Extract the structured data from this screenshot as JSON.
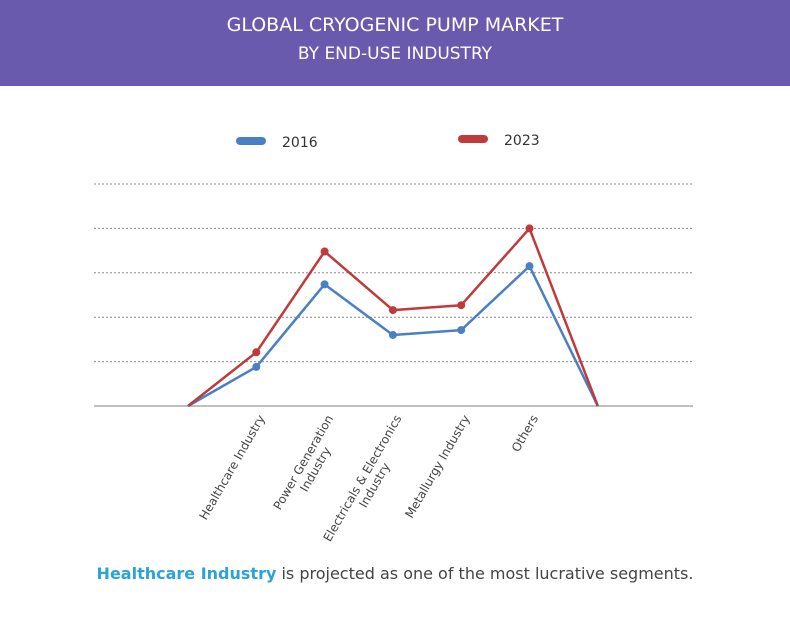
{
  "header": {
    "title_line1": "GLOBAL CRYOGENIC PUMP MARKET",
    "title_line2": "BY END-USE INDUSTRY"
  },
  "footer": {
    "highlight": "Healthcare Industry",
    "text": " is projected as one of the most lucrative segments."
  },
  "colors": {
    "header": "#6a5aad",
    "s2016": "#4a7fc4",
    "s2023": "#c0393b",
    "highlight": "#2ba3d8"
  },
  "chart_data": {
    "type": "line",
    "title": "Global Cryogenic Pump Market by End-Use Industry",
    "categories": [
      "",
      "Healthcare Industry",
      "Power Generation Industry",
      "Electricals & Electronics Industry",
      "Metallurgy Industry",
      "Others",
      ""
    ],
    "category_lines": [
      [],
      [
        "Healthcare Industry"
      ],
      [
        "Power Generation",
        "Industry"
      ],
      [
        "Electricals & Electronics",
        "Industry"
      ],
      [
        "Metallurgy Industry"
      ],
      [
        "Others"
      ],
      []
    ],
    "series": [
      {
        "name": "2016",
        "color": "#4a7fc4",
        "values": [
          0,
          0.88,
          2.74,
          1.6,
          1.71,
          3.15,
          0
        ]
      },
      {
        "name": "2023",
        "color": "#c0393b",
        "values": [
          0,
          1.21,
          3.48,
          2.16,
          2.27,
          4.0,
          0
        ]
      }
    ],
    "ylim": [
      0,
      5
    ],
    "grid": true,
    "legend": "top-center",
    "xlabel": "",
    "ylabel": ""
  }
}
